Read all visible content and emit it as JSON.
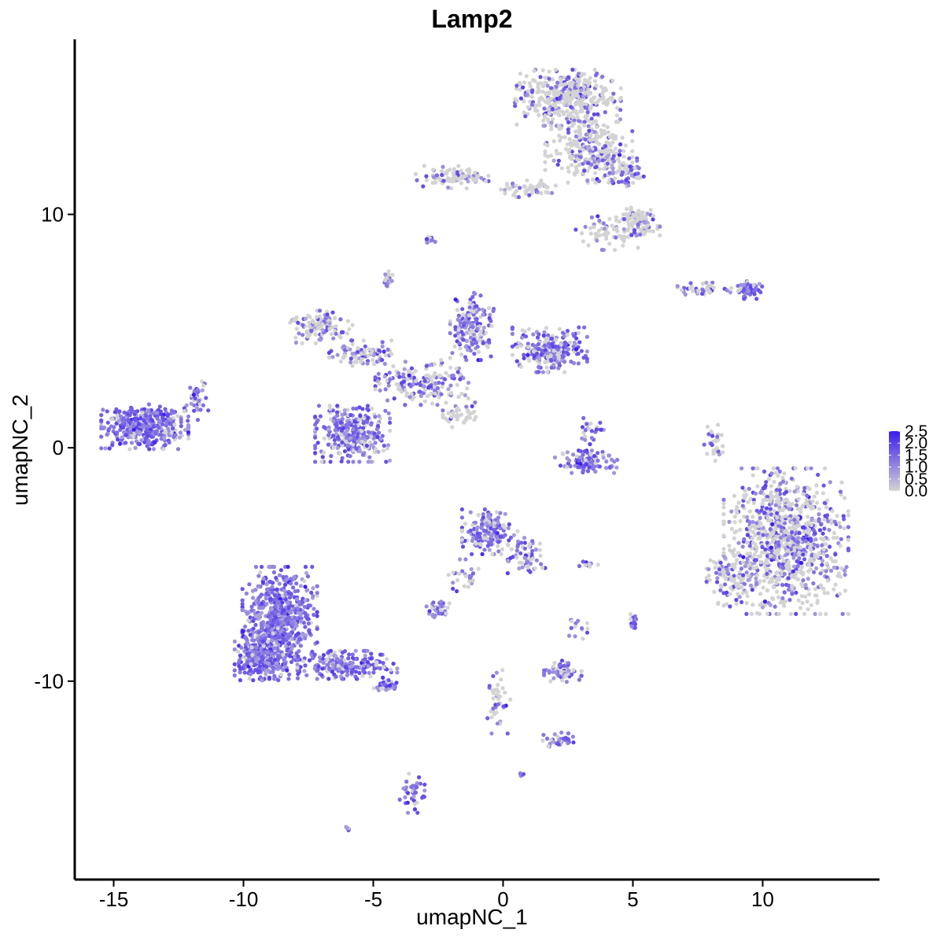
{
  "chart_data": {
    "type": "scatter",
    "title": "Lamp2",
    "xlabel": "umapNC_1",
    "ylabel": "umapNC_2",
    "xlim": [
      -16.5,
      14.5
    ],
    "ylim": [
      -18.5,
      17.5
    ],
    "x_ticks": [
      -15,
      -10,
      -5,
      0,
      5,
      10
    ],
    "y_ticks": [
      -10,
      0,
      10
    ],
    "grid": false,
    "legend": {
      "type": "colorbar",
      "placement": "right",
      "min": 0.0,
      "max": 2.5,
      "ticks": [
        "2.5",
        "2.0",
        "1.5",
        "1.0",
        "0.5",
        "0.0"
      ],
      "low_color": "#d3d3d3",
      "high_color": "#3a1cf0"
    },
    "clusters": [
      {
        "cx": -13.8,
        "cy": 0.9,
        "rx": 1.4,
        "ry": 0.8,
        "n": 380,
        "expr": 0.9
      },
      {
        "cx": -11.8,
        "cy": 2.0,
        "rx": 0.4,
        "ry": 0.7,
        "n": 40,
        "expr": 0.7
      },
      {
        "cx": -8.6,
        "cy": -7.5,
        "rx": 1.2,
        "ry": 2.0,
        "n": 700,
        "expr": 0.95
      },
      {
        "cx": -9.5,
        "cy": -9.0,
        "rx": 0.7,
        "ry": 0.8,
        "n": 200,
        "expr": 0.95
      },
      {
        "cx": -6.0,
        "cy": -9.3,
        "rx": 1.6,
        "ry": 0.5,
        "n": 200,
        "expr": 0.85
      },
      {
        "cx": -4.5,
        "cy": -10.2,
        "rx": 0.4,
        "ry": 0.2,
        "n": 40,
        "expr": 0.8
      },
      {
        "cx": -5.8,
        "cy": 0.6,
        "rx": 1.2,
        "ry": 1.0,
        "n": 320,
        "expr": 0.7
      },
      {
        "cx": -7.0,
        "cy": 5.2,
        "rx": 1.0,
        "ry": 0.6,
        "n": 110,
        "expr": 0.4
      },
      {
        "cx": -5.5,
        "cy": 4.0,
        "rx": 1.0,
        "ry": 0.5,
        "n": 90,
        "expr": 0.5
      },
      {
        "cx": -3.0,
        "cy": 2.8,
        "rx": 1.6,
        "ry": 0.8,
        "n": 180,
        "expr": 0.55
      },
      {
        "cx": -1.2,
        "cy": 5.2,
        "rx": 0.7,
        "ry": 1.2,
        "n": 160,
        "expr": 0.75
      },
      {
        "cx": 1.8,
        "cy": 4.2,
        "rx": 1.2,
        "ry": 0.8,
        "n": 220,
        "expr": 0.75
      },
      {
        "cx": -4.4,
        "cy": 7.2,
        "rx": 0.2,
        "ry": 0.3,
        "n": 20,
        "expr": 0.7
      },
      {
        "cx": -2.8,
        "cy": 8.9,
        "rx": 0.2,
        "ry": 0.15,
        "n": 12,
        "expr": 0.7
      },
      {
        "cx": -1.6,
        "cy": 1.3,
        "rx": 0.6,
        "ry": 0.4,
        "n": 40,
        "expr": 0.2
      },
      {
        "cx": 2.5,
        "cy": 15.0,
        "rx": 1.7,
        "ry": 1.0,
        "n": 420,
        "expr": 0.3
      },
      {
        "cx": 3.3,
        "cy": 12.8,
        "rx": 1.4,
        "ry": 1.2,
        "n": 280,
        "expr": 0.35
      },
      {
        "cx": 4.8,
        "cy": 11.8,
        "rx": 0.6,
        "ry": 0.5,
        "n": 60,
        "expr": 0.5
      },
      {
        "cx": 5.2,
        "cy": 9.7,
        "rx": 0.7,
        "ry": 0.5,
        "n": 90,
        "expr": 0.35
      },
      {
        "cx": -2.0,
        "cy": 11.6,
        "rx": 1.2,
        "ry": 0.4,
        "n": 90,
        "expr": 0.35
      },
      {
        "cx": 1.0,
        "cy": 11.1,
        "rx": 1.0,
        "ry": 0.3,
        "n": 50,
        "expr": 0.2
      },
      {
        "cx": 4.0,
        "cy": 9.2,
        "rx": 1.0,
        "ry": 0.6,
        "n": 60,
        "expr": 0.4
      },
      {
        "cx": 9.5,
        "cy": 6.8,
        "rx": 0.4,
        "ry": 0.35,
        "n": 55,
        "expr": 0.85
      },
      {
        "cx": 7.8,
        "cy": 6.8,
        "rx": 0.9,
        "ry": 0.25,
        "n": 40,
        "expr": 0.5
      },
      {
        "cx": 10.9,
        "cy": -4.0,
        "rx": 2.0,
        "ry": 2.6,
        "n": 900,
        "expr": 0.45
      },
      {
        "cx": 8.8,
        "cy": -5.6,
        "rx": 0.8,
        "ry": 1.0,
        "n": 90,
        "expr": 0.4
      },
      {
        "cx": 8.1,
        "cy": 0.2,
        "rx": 0.3,
        "ry": 0.8,
        "n": 30,
        "expr": 0.3
      },
      {
        "cx": 3.2,
        "cy": -0.6,
        "rx": 1.0,
        "ry": 0.4,
        "n": 110,
        "expr": 0.9
      },
      {
        "cx": 3.4,
        "cy": 0.7,
        "rx": 0.4,
        "ry": 0.6,
        "n": 25,
        "expr": 0.6
      },
      {
        "cx": -0.5,
        "cy": -3.6,
        "rx": 0.9,
        "ry": 0.8,
        "n": 180,
        "expr": 0.7
      },
      {
        "cx": 0.9,
        "cy": -4.7,
        "rx": 0.6,
        "ry": 0.7,
        "n": 60,
        "expr": 0.6
      },
      {
        "cx": -2.5,
        "cy": -6.9,
        "rx": 0.45,
        "ry": 0.3,
        "n": 45,
        "expr": 0.75
      },
      {
        "cx": -1.5,
        "cy": -5.5,
        "rx": 0.5,
        "ry": 0.6,
        "n": 25,
        "expr": 0.6
      },
      {
        "cx": 2.3,
        "cy": -9.6,
        "rx": 0.6,
        "ry": 0.4,
        "n": 60,
        "expr": 0.65
      },
      {
        "cx": 2.2,
        "cy": -12.5,
        "rx": 0.6,
        "ry": 0.25,
        "n": 35,
        "expr": 0.7
      },
      {
        "cx": -0.2,
        "cy": -10.8,
        "rx": 0.4,
        "ry": 1.2,
        "n": 40,
        "expr": 0.35
      },
      {
        "cx": -3.5,
        "cy": -14.8,
        "rx": 0.4,
        "ry": 0.7,
        "n": 40,
        "expr": 0.85
      },
      {
        "cx": 5.0,
        "cy": -7.4,
        "rx": 0.2,
        "ry": 0.3,
        "n": 16,
        "expr": 0.8
      },
      {
        "cx": 3.3,
        "cy": -5.0,
        "rx": 0.3,
        "ry": 0.1,
        "n": 10,
        "expr": 0.7
      },
      {
        "cx": 0.7,
        "cy": -14.0,
        "rx": 0.1,
        "ry": 0.1,
        "n": 6,
        "expr": 0.8
      },
      {
        "cx": -6.0,
        "cy": -16.3,
        "rx": 0.1,
        "ry": 0.1,
        "n": 6,
        "expr": 0.9
      },
      {
        "cx": 2.9,
        "cy": -7.7,
        "rx": 0.3,
        "ry": 0.4,
        "n": 14,
        "expr": 0.5
      }
    ]
  }
}
